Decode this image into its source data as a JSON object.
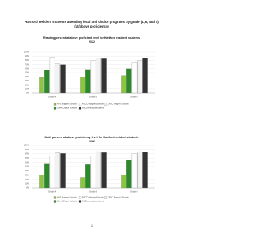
{
  "header": {
    "title": [
      "Hartford resident students attending local and choice programs by grade (4, 6, and 8)",
      "(at/above proficiency)"
    ]
  },
  "chart_data": [
    {
      "type": "bar",
      "title": [
        "Reading percent at/above proficient level for Hartford resident students",
        "2022"
      ],
      "categories": [
        "Grade 4",
        "Grade 6",
        "Grade 8"
      ],
      "series": [
        {
          "name": "HPS Magnet Schools",
          "color": "#8cc63f",
          "values": [
            38,
            40,
            43
          ]
        },
        {
          "name": "Open Choice Schools",
          "color": "#2a8a2a",
          "values": [
            57,
            58,
            60
          ]
        },
        {
          "name": "RSCO Magnet Schools",
          "color": "#ffffff",
          "values": [
            88,
            80,
            74
          ]
        },
        {
          "name": "CREC Magnet Schools",
          "color": "#f2f2f2",
          "values": [
            72,
            86,
            80
          ]
        },
        {
          "name": "All Connecticut students",
          "color": "#333333",
          "values": [
            70,
            84,
            86
          ]
        }
      ],
      "ylim": [
        0,
        100
      ],
      "yticks": [
        {
          "value": 0,
          "label": "0%"
        },
        {
          "value": 10,
          "label": "10%"
        },
        {
          "value": 20,
          "label": "20%"
        },
        {
          "value": 30,
          "label": "30%"
        },
        {
          "value": 40,
          "label": "40%"
        },
        {
          "value": 50,
          "label": "50%"
        },
        {
          "value": 60,
          "label": "60%"
        },
        {
          "value": 70,
          "label": "70%"
        },
        {
          "value": 80,
          "label": "80%"
        },
        {
          "value": 90,
          "label": "90%"
        },
        {
          "value": 100,
          "label": "100%"
        }
      ],
      "grid": true
    },
    {
      "type": "bar",
      "title": [
        "Math percent at/above proficiency level for Hartford resident students",
        "2022"
      ],
      "categories": [
        "Grade 4",
        "Grade 6",
        "Grade 8"
      ],
      "series": [
        {
          "name": "HPS Magnet Schools",
          "color": "#8cc63f",
          "values": [
            30,
            25,
            30
          ]
        },
        {
          "name": "Open Choice Schools",
          "color": "#2a8a2a",
          "values": [
            58,
            55,
            65
          ]
        },
        {
          "name": "RSCO Magnet Schools",
          "color": "#ffffff",
          "values": [
            75,
            75,
            80
          ]
        },
        {
          "name": "CREC Magnet Schools",
          "color": "#f2f2f2",
          "values": [
            83,
            85,
            85
          ]
        },
        {
          "name": "All Connecticut students",
          "color": "#333333",
          "values": [
            81,
            83,
            84
          ]
        }
      ],
      "ylim": [
        0,
        100
      ],
      "yticks": [
        {
          "value": 0,
          "label": "0%"
        },
        {
          "value": 10,
          "label": "10%"
        },
        {
          "value": 20,
          "label": "20%"
        },
        {
          "value": 30,
          "label": "30%"
        },
        {
          "value": 40,
          "label": "40%"
        },
        {
          "value": 50,
          "label": "50%"
        },
        {
          "value": 60,
          "label": "60%"
        },
        {
          "value": 70,
          "label": "70%"
        },
        {
          "value": 80,
          "label": "80%"
        },
        {
          "value": 90,
          "label": "90%"
        },
        {
          "value": 100,
          "label": "100%"
        }
      ],
      "grid": true
    }
  ],
  "page_number": "1"
}
